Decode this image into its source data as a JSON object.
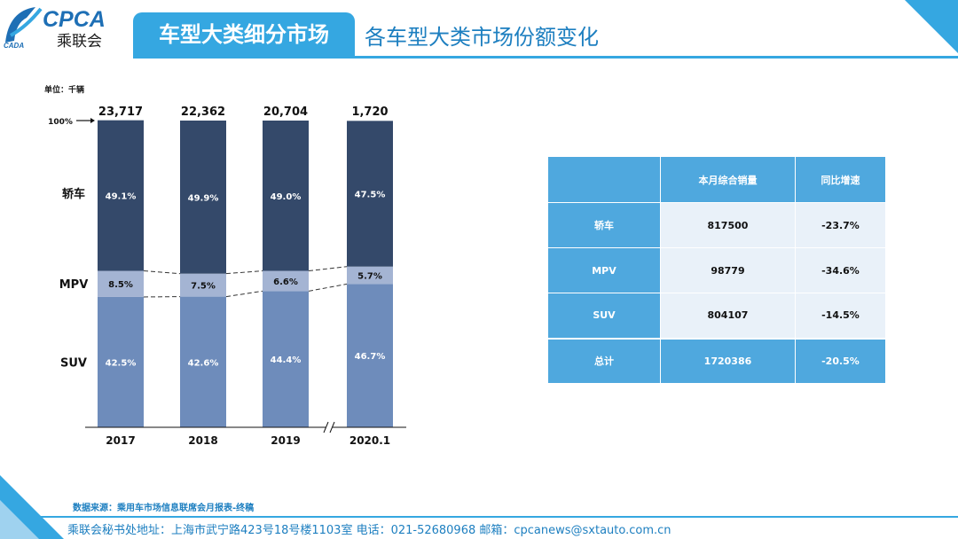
{
  "header": {
    "logo_text": "CPCA",
    "logo_sub": "乘联会",
    "logo_small": "CADA",
    "title": "车型大类细分市场",
    "subtitle": "各车型大类市场份额变化"
  },
  "chart_data": {
    "type": "bar",
    "stacked": "percent",
    "unit_label": "单位：千辆",
    "top_label": "100%",
    "categories": [
      "2017",
      "2018",
      "2019",
      "2020.1"
    ],
    "totals": [
      "23,717",
      "22,362",
      "20,704",
      "1,720"
    ],
    "axis_break_between": [
      "2019",
      "2020.1"
    ],
    "series": [
      {
        "name": "SUV",
        "values": [
          42.5,
          42.6,
          44.4,
          46.7
        ],
        "labels": [
          "42.5%",
          "42.6%",
          "44.4%",
          "46.7%"
        ],
        "color": "#6e8cbb"
      },
      {
        "name": "MPV",
        "values": [
          8.5,
          7.5,
          6.6,
          5.7
        ],
        "labels": [
          "8.5%",
          "7.5%",
          "6.6%",
          "5.7%"
        ],
        "color": "#a4b4d3"
      },
      {
        "name": "轿车",
        "values": [
          49.1,
          49.9,
          49.0,
          47.5
        ],
        "labels": [
          "49.1%",
          "49.9%",
          "49.0%",
          "47.5%"
        ],
        "color": "#34496a"
      }
    ]
  },
  "table": {
    "headers": [
      "",
      "本月综合销量",
      "同比增速"
    ],
    "rows": [
      {
        "label": "轿车",
        "sales": "817500",
        "growth": "-23.7%"
      },
      {
        "label": "MPV",
        "sales": "98779",
        "growth": "-34.6%"
      },
      {
        "label": "SUV",
        "sales": "804107",
        "growth": "-14.5%"
      }
    ],
    "total": {
      "label": "总计",
      "sales": "1720386",
      "growth": "-20.5%"
    }
  },
  "footer": {
    "source": "数据来源：乘用车市场信息联席会月报表-终稿",
    "contact": "乘联会秘书处地址：上海市武宁路423号18号楼1103室  电话：021-52680968  邮箱：cpcanews@sxtauto.com.cn"
  },
  "colors": {
    "accent": "#35a7e1",
    "dark_blue": "#1d7fc0"
  }
}
